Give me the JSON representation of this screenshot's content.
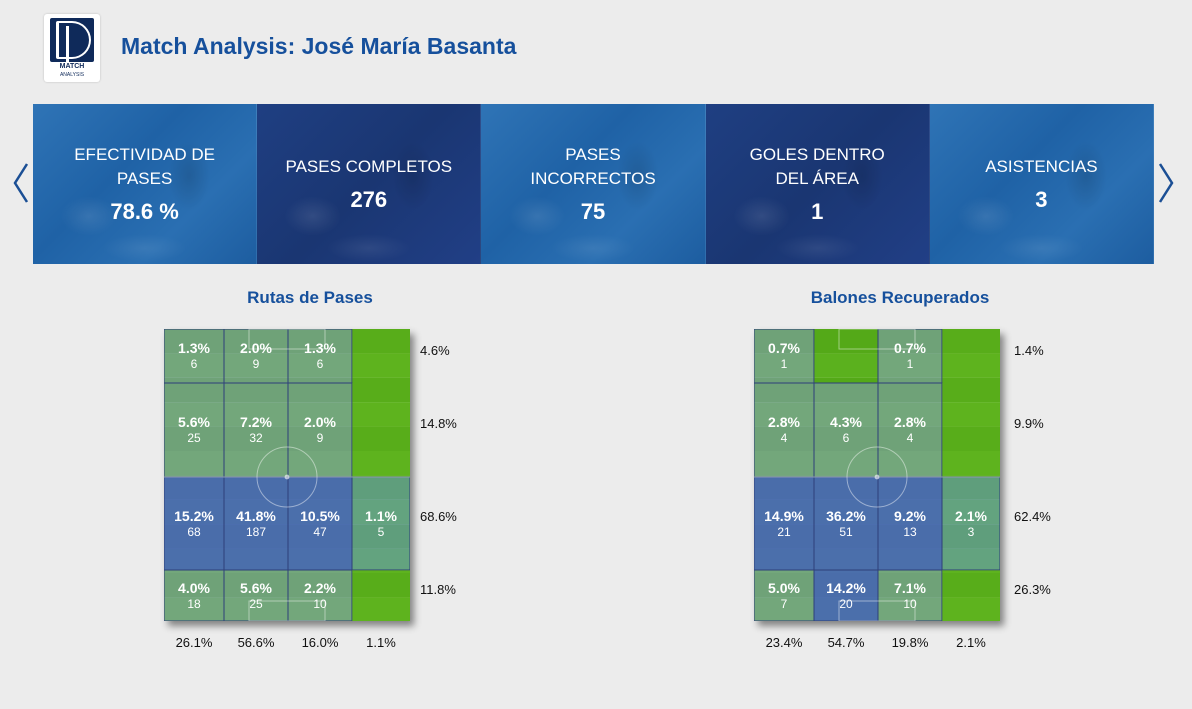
{
  "logo": {
    "line1": "MATCH",
    "line2": "ANALYSIS"
  },
  "title": "Match Analysis: José María Basanta",
  "colors": {
    "accent": "#16509c",
    "card_light": "#2a6bb0",
    "card_dark": "#1c3a7a",
    "pitch_green": "#5fb320",
    "pitch_blue": "#4c68c0"
  },
  "carousel": {
    "prev_icon": "chevron-left-icon",
    "next_icon": "chevron-right-icon",
    "cards": [
      {
        "label": "EFECTIVIDAD DE PASES",
        "value": "78.6 %"
      },
      {
        "label": "PASES COMPLETOS",
        "value": "276"
      },
      {
        "label": "PASES INCORRECTOS",
        "value": "75"
      },
      {
        "label": "GOLES DENTRO DEL ÁREA",
        "value": "1"
      },
      {
        "label": "ASISTENCIAS",
        "value": "3"
      }
    ]
  },
  "pass_routes": {
    "title": "Rutas de Pases",
    "grid": [
      [
        {
          "pct": "1.3%",
          "count": "6"
        },
        {
          "pct": "2.0%",
          "count": "9"
        },
        {
          "pct": "1.3%",
          "count": "6"
        },
        null
      ],
      [
        {
          "pct": "5.6%",
          "count": "25"
        },
        {
          "pct": "7.2%",
          "count": "32"
        },
        {
          "pct": "2.0%",
          "count": "9"
        },
        null
      ],
      [
        {
          "pct": "15.2%",
          "count": "68"
        },
        {
          "pct": "41.8%",
          "count": "187"
        },
        {
          "pct": "10.5%",
          "count": "47"
        },
        {
          "pct": "1.1%",
          "count": "5"
        }
      ],
      [
        {
          "pct": "4.0%",
          "count": "18"
        },
        {
          "pct": "5.6%",
          "count": "25"
        },
        {
          "pct": "2.2%",
          "count": "10"
        },
        null
      ]
    ],
    "row_totals": [
      "4.6%",
      "14.8%",
      "68.6%",
      "11.8%"
    ],
    "col_totals": [
      "26.1%",
      "56.6%",
      "16.0%",
      "1.1%"
    ]
  },
  "recoveries": {
    "title": "Balones Recuperados",
    "grid": [
      [
        {
          "pct": "0.7%",
          "count": "1"
        },
        null,
        {
          "pct": "0.7%",
          "count": "1"
        },
        null
      ],
      [
        {
          "pct": "2.8%",
          "count": "4"
        },
        {
          "pct": "4.3%",
          "count": "6"
        },
        {
          "pct": "2.8%",
          "count": "4"
        },
        null
      ],
      [
        {
          "pct": "14.9%",
          "count": "21"
        },
        {
          "pct": "36.2%",
          "count": "51"
        },
        {
          "pct": "9.2%",
          "count": "13"
        },
        {
          "pct": "2.1%",
          "count": "3"
        }
      ],
      [
        {
          "pct": "5.0%",
          "count": "7"
        },
        {
          "pct": "14.2%",
          "count": "20"
        },
        {
          "pct": "7.1%",
          "count": "10"
        },
        null
      ]
    ],
    "row_totals": [
      "1.4%",
      "9.9%",
      "62.4%",
      "26.3%"
    ],
    "col_totals": [
      "23.4%",
      "54.7%",
      "19.8%",
      "2.1%"
    ]
  }
}
